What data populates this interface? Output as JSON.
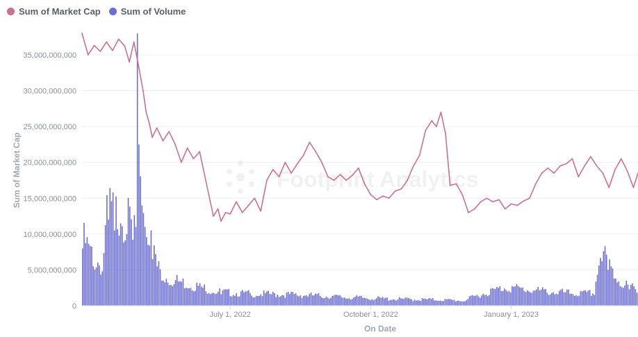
{
  "legend": {
    "market_cap_label": "Sum of Market Cap",
    "volume_label": "Sum of Volume"
  },
  "colors": {
    "market_cap": "#cd6f92",
    "volume": "#6b6cd6",
    "grid": "#eef0f3",
    "axis_text": "#8a8f99"
  },
  "chart_data": {
    "type": "line",
    "xlabel": "On Date",
    "ylabel": "Sum of Market Cap",
    "ylim": [
      0,
      38000000000
    ],
    "yticks": [
      0,
      5000000000,
      10000000000,
      15000000000,
      20000000000,
      25000000000,
      30000000000,
      35000000000
    ],
    "ytick_labels": [
      "0",
      "5,000,000,000",
      "10,000,000,000",
      "15,000,000,000",
      "20,000,000,000",
      "25,000,000,000",
      "30,000,000,000",
      "35,000,000,000"
    ],
    "x_range": [
      "2022-03-26",
      "2023-03-25"
    ],
    "x_ticks": [
      {
        "date": "2022-07-01",
        "label": "July 1, 2022"
      },
      {
        "date": "2022-10-01",
        "label": "October 1, 2022"
      },
      {
        "date": "2023-01-01",
        "label": "January 1, 2023"
      }
    ],
    "grid": true,
    "legend_position": "top-left",
    "series": [
      {
        "name": "Sum of Market Cap",
        "kind": "line",
        "points": [
          [
            "2022-03-26",
            38000000000
          ],
          [
            "2022-03-30",
            35000000000
          ],
          [
            "2022-04-03",
            36300000000
          ],
          [
            "2022-04-07",
            35500000000
          ],
          [
            "2022-04-11",
            36800000000
          ],
          [
            "2022-04-15",
            35600000000
          ],
          [
            "2022-04-19",
            37200000000
          ],
          [
            "2022-04-23",
            36200000000
          ],
          [
            "2022-04-26",
            34000000000
          ],
          [
            "2022-04-29",
            36800000000
          ],
          [
            "2022-05-02",
            33500000000
          ],
          [
            "2022-05-05",
            30000000000
          ],
          [
            "2022-05-07",
            27000000000
          ],
          [
            "2022-05-09",
            25500000000
          ],
          [
            "2022-05-11",
            23500000000
          ],
          [
            "2022-05-14",
            24800000000
          ],
          [
            "2022-05-18",
            23000000000
          ],
          [
            "2022-05-22",
            24300000000
          ],
          [
            "2022-05-26",
            22500000000
          ],
          [
            "2022-05-30",
            20000000000
          ],
          [
            "2022-06-03",
            22000000000
          ],
          [
            "2022-06-07",
            20500000000
          ],
          [
            "2022-06-11",
            21500000000
          ],
          [
            "2022-06-14",
            18500000000
          ],
          [
            "2022-06-17",
            15500000000
          ],
          [
            "2022-06-20",
            12500000000
          ],
          [
            "2022-06-23",
            13500000000
          ],
          [
            "2022-06-25",
            11800000000
          ],
          [
            "2022-06-28",
            13000000000
          ],
          [
            "2022-07-01",
            12800000000
          ],
          [
            "2022-07-05",
            14500000000
          ],
          [
            "2022-07-09",
            13000000000
          ],
          [
            "2022-07-13",
            14000000000
          ],
          [
            "2022-07-17",
            15000000000
          ],
          [
            "2022-07-21",
            13200000000
          ],
          [
            "2022-07-25",
            17500000000
          ],
          [
            "2022-07-29",
            19000000000
          ],
          [
            "2022-08-02",
            18000000000
          ],
          [
            "2022-08-06",
            20000000000
          ],
          [
            "2022-08-10",
            18500000000
          ],
          [
            "2022-08-14",
            19800000000
          ],
          [
            "2022-08-18",
            21000000000
          ],
          [
            "2022-08-22",
            22800000000
          ],
          [
            "2022-08-26",
            21500000000
          ],
          [
            "2022-08-30",
            20000000000
          ],
          [
            "2022-09-03",
            18000000000
          ],
          [
            "2022-09-07",
            17500000000
          ],
          [
            "2022-09-11",
            18300000000
          ],
          [
            "2022-09-15",
            17500000000
          ],
          [
            "2022-09-19",
            18200000000
          ],
          [
            "2022-09-23",
            19200000000
          ],
          [
            "2022-09-27",
            17000000000
          ],
          [
            "2022-10-01",
            15500000000
          ],
          [
            "2022-10-05",
            14800000000
          ],
          [
            "2022-10-09",
            15300000000
          ],
          [
            "2022-10-13",
            15000000000
          ],
          [
            "2022-10-17",
            16000000000
          ],
          [
            "2022-10-21",
            16300000000
          ],
          [
            "2022-10-25",
            17500000000
          ],
          [
            "2022-10-29",
            19500000000
          ],
          [
            "2022-11-02",
            21000000000
          ],
          [
            "2022-11-06",
            24500000000
          ],
          [
            "2022-11-10",
            25800000000
          ],
          [
            "2022-11-13",
            25000000000
          ],
          [
            "2022-11-16",
            27000000000
          ],
          [
            "2022-11-19",
            24000000000
          ],
          [
            "2022-11-22",
            16800000000
          ],
          [
            "2022-11-26",
            17000000000
          ],
          [
            "2022-11-30",
            15500000000
          ],
          [
            "2022-12-04",
            13000000000
          ],
          [
            "2022-12-08",
            13500000000
          ],
          [
            "2022-12-12",
            14500000000
          ],
          [
            "2022-12-16",
            15000000000
          ],
          [
            "2022-12-20",
            14500000000
          ],
          [
            "2022-12-24",
            14800000000
          ],
          [
            "2022-12-28",
            13500000000
          ],
          [
            "2023-01-01",
            14200000000
          ],
          [
            "2023-01-05",
            14000000000
          ],
          [
            "2023-01-09",
            14600000000
          ],
          [
            "2023-01-13",
            15000000000
          ],
          [
            "2023-01-17",
            17000000000
          ],
          [
            "2023-01-21",
            18500000000
          ],
          [
            "2023-01-25",
            19200000000
          ],
          [
            "2023-01-29",
            18500000000
          ],
          [
            "2023-02-02",
            19500000000
          ],
          [
            "2023-02-06",
            19800000000
          ],
          [
            "2023-02-10",
            20500000000
          ],
          [
            "2023-02-14",
            18000000000
          ],
          [
            "2023-02-18",
            19500000000
          ],
          [
            "2023-02-22",
            20800000000
          ],
          [
            "2023-02-26",
            19500000000
          ],
          [
            "2023-03-02",
            18500000000
          ],
          [
            "2023-03-06",
            16500000000
          ],
          [
            "2023-03-10",
            19000000000
          ],
          [
            "2023-03-14",
            20500000000
          ],
          [
            "2023-03-18",
            18800000000
          ],
          [
            "2023-03-22",
            16500000000
          ],
          [
            "2023-03-25",
            18500000000
          ]
        ]
      },
      {
        "name": "Sum of Volume",
        "kind": "bar",
        "points": [
          [
            "2022-03-26",
            8000000000
          ],
          [
            "2022-04-02",
            5500000000
          ],
          [
            "2022-04-08",
            4800000000
          ],
          [
            "2022-04-12",
            12000000000
          ],
          [
            "2022-04-16",
            10500000000
          ],
          [
            "2022-04-20",
            11500000000
          ],
          [
            "2022-04-24",
            10000000000
          ],
          [
            "2022-04-28",
            9200000000
          ],
          [
            "2022-04-30",
            11000000000
          ],
          [
            "2022-05-01",
            38000000000
          ],
          [
            "2022-05-02",
            22500000000
          ],
          [
            "2022-05-04",
            14000000000
          ],
          [
            "2022-05-06",
            11000000000
          ],
          [
            "2022-05-08",
            8500000000
          ],
          [
            "2022-05-11",
            6500000000
          ],
          [
            "2022-05-14",
            5500000000
          ],
          [
            "2022-05-17",
            3500000000
          ],
          [
            "2022-05-25",
            3000000000
          ],
          [
            "2022-06-05",
            2500000000
          ],
          [
            "2022-06-15",
            2000000000
          ],
          [
            "2022-06-25",
            1600000000
          ],
          [
            "2022-07-15",
            1400000000
          ],
          [
            "2022-08-15",
            1300000000
          ],
          [
            "2022-09-15",
            1000000000
          ],
          [
            "2022-10-15",
            800000000
          ],
          [
            "2022-11-15",
            700000000
          ],
          [
            "2022-12-01",
            600000000
          ],
          [
            "2022-12-15",
            1500000000
          ],
          [
            "2022-12-29",
            2200000000
          ],
          [
            "2023-01-15",
            1800000000
          ],
          [
            "2023-02-01",
            1600000000
          ],
          [
            "2023-02-15",
            1400000000
          ],
          [
            "2023-02-25",
            1500000000
          ],
          [
            "2023-02-28",
            5600000000
          ],
          [
            "2023-03-02",
            6200000000
          ],
          [
            "2023-03-06",
            5000000000
          ],
          [
            "2023-03-10",
            3800000000
          ],
          [
            "2023-03-15",
            2600000000
          ],
          [
            "2023-03-20",
            2300000000
          ],
          [
            "2023-03-25",
            1800000000
          ]
        ]
      }
    ]
  }
}
